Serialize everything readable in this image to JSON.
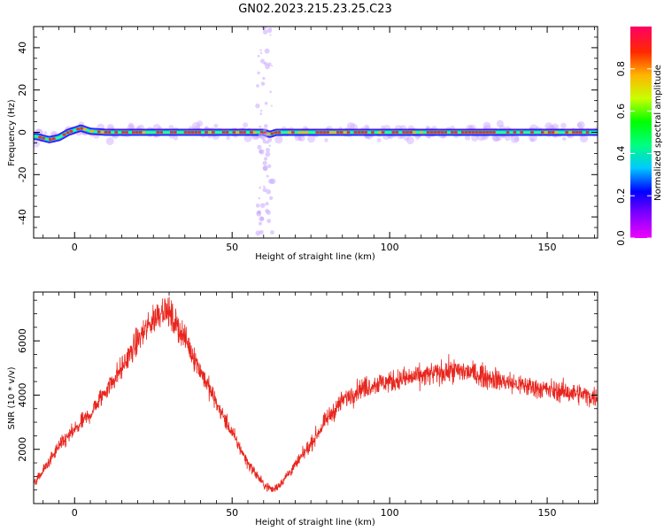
{
  "title": "GN02.2023.215.23.25.C23",
  "colors": {
    "snr_line": "#e8261e",
    "spectrogram_core": "#e83020",
    "background": "#ffffff"
  },
  "chart_data": [
    {
      "type": "heatmap",
      "name": "spectrogram",
      "xlabel": "Height of straight line (km)",
      "ylabel": "Frequency (Hz)",
      "xlim": [
        -13,
        166
      ],
      "ylim": [
        -50,
        50
      ],
      "xticks": [
        0,
        50,
        100,
        150
      ],
      "yticks": [
        -40,
        -20,
        0,
        20,
        40
      ],
      "colorscale": "gist_rainbow (reversed)",
      "colorbar": {
        "label": "Normalized spectral amplitude",
        "ticks": [
          0.0,
          0.2,
          0.4,
          0.6,
          0.8
        ],
        "range": [
          0,
          1
        ]
      },
      "ridge_frequency_hz": [
        {
          "x": -12,
          "y": -2
        },
        {
          "x": -8,
          "y": -3.5
        },
        {
          "x": -5,
          "y": -2.5
        },
        {
          "x": -2,
          "y": 0
        },
        {
          "x": 2,
          "y": 2
        },
        {
          "x": 5,
          "y": 0.5
        },
        {
          "x": 10,
          "y": 0
        },
        {
          "x": 60,
          "y": 0
        },
        {
          "x": 62,
          "y": -1
        },
        {
          "x": 64,
          "y": 0
        },
        {
          "x": 166,
          "y": 0
        }
      ],
      "scatter_spike_near_x": 60,
      "grid": false
    },
    {
      "type": "line",
      "name": "snr",
      "xlabel": "Height of straight line (km)",
      "ylabel": "SNR (10 * v/v)",
      "xlim": [
        -13,
        166
      ],
      "ylim": [
        0,
        7800
      ],
      "xticks": [
        0,
        50,
        100,
        150
      ],
      "yticks": [
        2000,
        4000,
        6000
      ],
      "grid": false,
      "series": [
        {
          "x": [
            -13,
            -10,
            -5,
            0,
            5,
            10,
            15,
            20,
            25,
            28,
            30,
            35,
            40,
            45,
            50,
            55,
            60,
            63,
            65,
            70,
            75,
            80,
            85,
            90,
            95,
            100,
            110,
            120,
            125,
            130,
            140,
            150,
            160,
            166
          ],
          "y": [
            700,
            1200,
            2100,
            2700,
            3300,
            4200,
            5000,
            6000,
            6800,
            7200,
            7000,
            6100,
            4900,
            3700,
            2600,
            1500,
            700,
            500,
            700,
            1400,
            2200,
            3100,
            3800,
            4200,
            4400,
            4500,
            4700,
            4900,
            4850,
            4700,
            4400,
            4200,
            4050,
            3900
          ]
        }
      ]
    }
  ]
}
